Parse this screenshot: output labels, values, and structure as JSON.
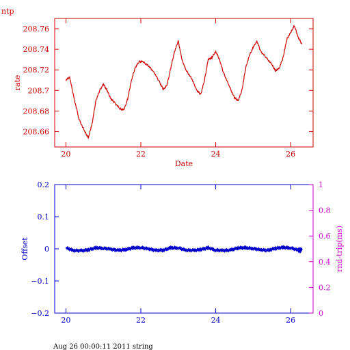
{
  "header": {
    "label": "ntp"
  },
  "footer": {
    "text": "Aug 26 00:00:11 2011 string"
  },
  "colors": {
    "top": "#cc0000",
    "bottom": "#0000cc",
    "right_axis": "#cc00cc",
    "bg": "#ffffff"
  },
  "chart_data": [
    {
      "type": "line",
      "title": "",
      "xlabel": "Date",
      "ylabel": "rate",
      "xlim": [
        19.7,
        26.6
      ],
      "ylim": [
        208.645,
        208.77
      ],
      "xticks": [
        20,
        22,
        24,
        26
      ],
      "xtick_labels": [
        "20",
        "22",
        "24",
        "26"
      ],
      "yticks": [
        208.66,
        208.68,
        208.7,
        208.72,
        208.74,
        208.76
      ],
      "ytick_labels": [
        "208.66",
        "208.68",
        "208.7",
        "208.72",
        "208.74",
        "208.76"
      ],
      "grid": false,
      "series": [
        {
          "x": [
            20.0,
            20.1,
            20.2,
            20.35,
            20.5,
            20.6,
            20.7,
            20.8,
            20.9,
            21.0,
            21.1,
            21.2,
            21.3,
            21.45,
            21.55,
            21.65,
            21.75,
            21.85,
            21.95,
            22.05,
            22.2,
            22.35,
            22.5,
            22.6,
            22.7,
            22.8,
            22.9,
            23.0,
            23.1,
            23.2,
            23.35,
            23.5,
            23.6,
            23.7,
            23.8,
            23.9,
            24.0,
            24.1,
            24.2,
            24.35,
            24.5,
            24.6,
            24.7,
            24.8,
            24.9,
            25.0,
            25.1,
            25.2,
            25.35,
            25.5,
            25.6,
            25.7,
            25.8,
            25.9,
            26.0,
            26.1,
            26.2,
            26.3
          ],
          "y": [
            208.71,
            208.713,
            208.695,
            208.672,
            208.66,
            208.654,
            208.668,
            208.69,
            208.7,
            208.706,
            208.7,
            208.692,
            208.688,
            208.682,
            208.681,
            208.692,
            208.71,
            208.722,
            208.728,
            208.728,
            208.724,
            208.718,
            208.708,
            208.701,
            208.705,
            208.722,
            208.738,
            208.748,
            208.73,
            208.72,
            208.712,
            208.7,
            208.696,
            208.71,
            208.73,
            208.732,
            208.738,
            208.73,
            208.718,
            208.705,
            208.693,
            208.69,
            208.7,
            208.722,
            208.734,
            208.742,
            208.748,
            208.738,
            208.732,
            208.725,
            208.719,
            208.722,
            208.732,
            208.75,
            208.756,
            208.763,
            208.752,
            208.745
          ]
        }
      ]
    },
    {
      "type": "line",
      "title": "",
      "xlabel": "",
      "ylabel": "Offset",
      "ylabel_right": "rnd-trip(ms)",
      "xlim": [
        19.7,
        26.6
      ],
      "ylim": [
        -0.2,
        0.2
      ],
      "ylim_right": [
        0,
        1
      ],
      "xticks": [
        20,
        22,
        24,
        26
      ],
      "xtick_labels": [
        "20",
        "22",
        "24",
        "26"
      ],
      "yticks": [
        -0.2,
        -0.1,
        0,
        0.1,
        0.2
      ],
      "ytick_labels": [
        "−0.2",
        "−0.1",
        "0",
        "0.1",
        "0.2"
      ],
      "yticks_right": [
        0,
        0.2,
        0.4,
        0.6,
        0.8,
        1
      ],
      "ytick_labels_right": [
        "0",
        "0.2",
        "0.4",
        "0.6",
        "0.8",
        "1"
      ],
      "grid": false,
      "series": [
        {
          "x": [
            20.0,
            20.2,
            20.4,
            20.6,
            20.8,
            21.0,
            21.2,
            21.4,
            21.6,
            21.8,
            22.0,
            22.2,
            22.4,
            22.6,
            22.8,
            23.0,
            23.2,
            23.4,
            23.6,
            23.8,
            24.0,
            24.2,
            24.4,
            24.6,
            24.8,
            25.0,
            25.2,
            25.4,
            25.6,
            25.8,
            26.0,
            26.2,
            26.3
          ],
          "y": [
            0.003,
            -0.005,
            -0.006,
            -0.003,
            0.003,
            0.002,
            -0.001,
            -0.005,
            -0.002,
            0.003,
            0.004,
            0.0,
            -0.005,
            -0.004,
            0.003,
            0.003,
            -0.004,
            -0.005,
            -0.002,
            0.003,
            -0.004,
            -0.005,
            -0.004,
            0.003,
            0.003,
            0.001,
            -0.003,
            -0.005,
            0.002,
            0.004,
            0.003,
            -0.004,
            -0.004
          ]
        }
      ]
    }
  ]
}
